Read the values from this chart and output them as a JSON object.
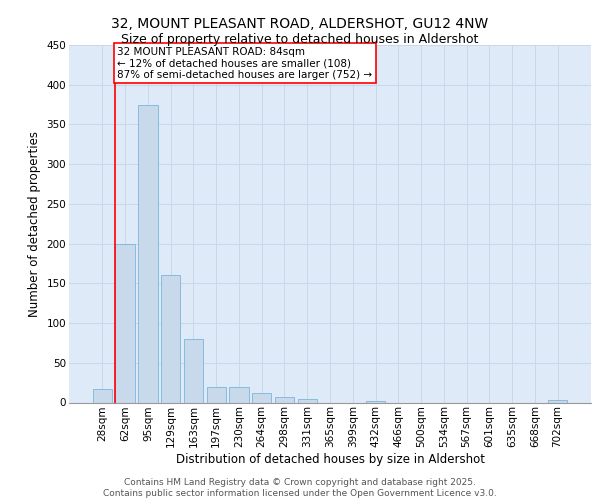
{
  "title_line1": "32, MOUNT PLEASANT ROAD, ALDERSHOT, GU12 4NW",
  "title_line2": "Size of property relative to detached houses in Aldershot",
  "xlabel": "Distribution of detached houses by size in Aldershot",
  "ylabel": "Number of detached properties",
  "bar_color": "#c8d9ec",
  "bar_edge_color": "#6aaed6",
  "grid_color": "#c8d8e8",
  "background_color": "#deeaf7",
  "categories": [
    "28sqm",
    "62sqm",
    "95sqm",
    "129sqm",
    "163sqm",
    "197sqm",
    "230sqm",
    "264sqm",
    "298sqm",
    "331sqm",
    "365sqm",
    "399sqm",
    "432sqm",
    "466sqm",
    "500sqm",
    "534sqm",
    "567sqm",
    "601sqm",
    "635sqm",
    "668sqm",
    "702sqm"
  ],
  "values": [
    17,
    200,
    375,
    160,
    80,
    20,
    20,
    12,
    7,
    4,
    0,
    0,
    2,
    0,
    0,
    0,
    0,
    0,
    0,
    0,
    3
  ],
  "annotation_line1": "32 MOUNT PLEASANT ROAD: 84sqm",
  "annotation_line2": "← 12% of detached houses are smaller (108)",
  "annotation_line3": "87% of semi-detached houses are larger (752) →",
  "vline_bin_index": 1,
  "ylim": [
    0,
    450
  ],
  "yticks": [
    0,
    50,
    100,
    150,
    200,
    250,
    300,
    350,
    400,
    450
  ],
  "footer_line1": "Contains HM Land Registry data © Crown copyright and database right 2025.",
  "footer_line2": "Contains public sector information licensed under the Open Government Licence v3.0.",
  "title_fontsize": 10,
  "subtitle_fontsize": 9,
  "axis_label_fontsize": 8.5,
  "tick_fontsize": 7.5,
  "annotation_fontsize": 7.5,
  "footer_fontsize": 6.5
}
